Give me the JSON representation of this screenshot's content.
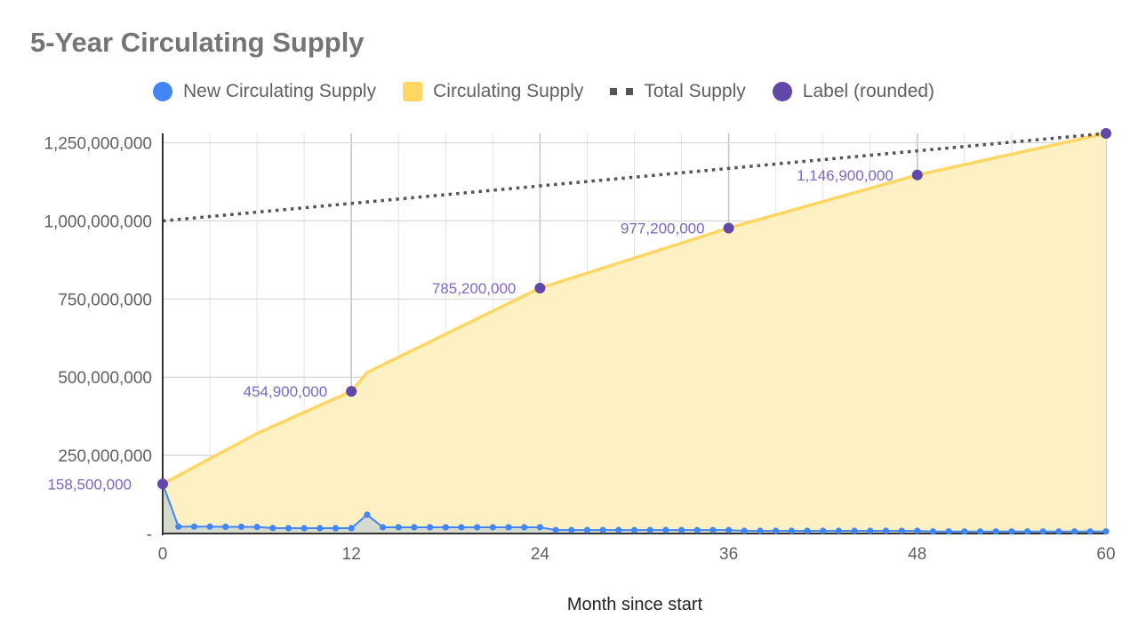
{
  "chart_data": {
    "type": "line",
    "title": "5-Year Circulating Supply",
    "xlabel": "Month since start",
    "ylabel": "",
    "xlim": [
      0,
      60
    ],
    "ylim": [
      0,
      1280000000
    ],
    "x_ticks": [
      0,
      12,
      24,
      36,
      48,
      60
    ],
    "y_ticks": [
      {
        "value": 0,
        "label": "-"
      },
      {
        "value": 250000000,
        "label": "250,000,000"
      },
      {
        "value": 500000000,
        "label": "500,000,000"
      },
      {
        "value": 750000000,
        "label": "750,000,000"
      },
      {
        "value": 1000000000,
        "label": "1,000,000,000"
      },
      {
        "value": 1250000000,
        "label": "1,250,000,000"
      }
    ],
    "grid": true,
    "legend_position": "top",
    "colors": {
      "new_supply": "#4285f4",
      "circulating_line": "#fdd663",
      "circulating_fill": "#fdf1c4",
      "new_supply_fill": "#cfd8cf",
      "total_supply": "#555555",
      "label_points": "#5f48a8",
      "label_text": "#7e67c5",
      "grid": "#d6d6d6",
      "axis": "#333333"
    },
    "series": [
      {
        "name": "New Circulating Supply",
        "type": "area-line",
        "x": [
          0,
          1,
          2,
          3,
          4,
          5,
          6,
          7,
          8,
          9,
          10,
          11,
          12,
          13,
          14,
          15,
          16,
          17,
          18,
          19,
          20,
          21,
          22,
          23,
          24,
          25,
          26,
          27,
          28,
          29,
          30,
          31,
          32,
          33,
          34,
          35,
          36,
          37,
          38,
          39,
          40,
          41,
          42,
          43,
          44,
          45,
          46,
          47,
          48,
          49,
          50,
          51,
          52,
          53,
          54,
          55,
          56,
          57,
          58,
          59,
          60
        ],
        "values": [
          158500000,
          22000000,
          22000000,
          22000000,
          21500000,
          21500000,
          21000000,
          17500000,
          17000000,
          17000000,
          17000000,
          17000000,
          17000000,
          60000000,
          20000000,
          20000000,
          20000000,
          20000000,
          20000000,
          20000000,
          20000000,
          20000000,
          20000000,
          20000000,
          20000000,
          11000000,
          11000000,
          11000000,
          11000000,
          11000000,
          11000000,
          11000000,
          11000000,
          11000000,
          11000000,
          11000000,
          11000000,
          8500000,
          8500000,
          8500000,
          8500000,
          8500000,
          8500000,
          8500000,
          8500000,
          8500000,
          8500000,
          8500000,
          8500000,
          6500000,
          6500000,
          6500000,
          6500000,
          6500000,
          6500000,
          6500000,
          6500000,
          6500000,
          6500000,
          6500000,
          6500000
        ]
      },
      {
        "name": "Circulating Supply",
        "type": "area",
        "x": [
          0,
          6,
          12,
          13,
          24,
          36,
          48,
          60
        ],
        "values": [
          158500000,
          320000000,
          454900000,
          515000000,
          785200000,
          977200000,
          1146900000,
          1280000000
        ]
      },
      {
        "name": "Total Supply",
        "type": "dotted-line",
        "x": [
          0,
          60
        ],
        "values": [
          1000000000,
          1280000000
        ]
      },
      {
        "name": "Label (rounded)",
        "type": "scatter",
        "x": [
          0,
          12,
          24,
          36,
          48,
          60
        ],
        "values": [
          158500000,
          454900000,
          785200000,
          977200000,
          1146900000,
          1280000000
        ],
        "labels": [
          "158,500,000",
          "454,900,000",
          "785,200,000",
          "977,200,000",
          "1,146,900,000",
          ""
        ]
      }
    ]
  }
}
